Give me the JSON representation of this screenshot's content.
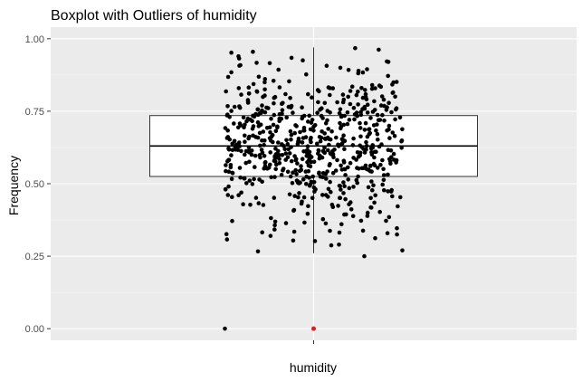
{
  "chart_data": {
    "type": "boxplot",
    "title": "Boxplot with Outliers of  humidity",
    "xlabel": "humidity",
    "ylabel": "Frequency",
    "x_categories": [
      "humidity"
    ],
    "ylim": [
      -0.04,
      1.04
    ],
    "y_ticks": [
      0.0,
      0.25,
      0.5,
      0.75,
      1.0
    ],
    "y_tick_labels": [
      "0.00",
      "0.25",
      "0.50",
      "0.75",
      "1.00"
    ],
    "grid": true,
    "box": {
      "category": "humidity",
      "q1": 0.525,
      "median": 0.63,
      "q3": 0.735,
      "whisker_low": 0.26,
      "whisker_high": 0.97,
      "outliers": [
        0.0
      ]
    },
    "jitter_points": {
      "count": 650,
      "y_min": 0.25,
      "y_max": 0.97,
      "center": 0.625,
      "extra": [
        {
          "x_offset": -0.35,
          "y": 0.0
        },
        {
          "x_offset": 0.2,
          "y": 0.25
        },
        {
          "x_offset": 0.35,
          "y": 0.27
        },
        {
          "x_offset": -0.17,
          "y": 0.32
        },
        {
          "x_offset": 0.1,
          "y": 0.29
        }
      ]
    },
    "colors": {
      "panel": "#ebebeb",
      "grid_major": "#ffffff",
      "grid_minor": "#f5f5f5",
      "points": "#000000",
      "outlier": "#e41a1c",
      "box_fill": "#ffffff",
      "box_stroke": "#333333"
    }
  }
}
